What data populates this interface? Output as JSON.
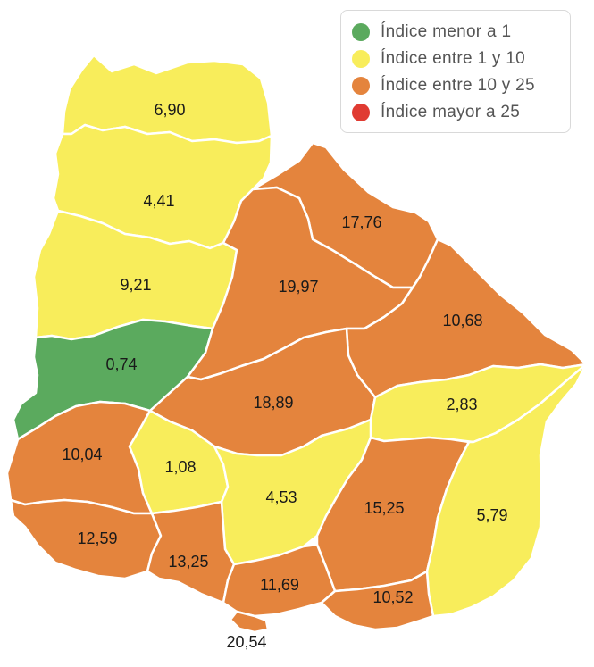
{
  "colors": {
    "green": "#5BAA5E",
    "yellow": "#F8ED5B",
    "orange": "#E4843D",
    "red": "#E03B32"
  },
  "legend": [
    {
      "label": "Índice menor a 1",
      "color": "#5BAA5E"
    },
    {
      "label": "Índice entre 1 y 10",
      "color": "#F8ED5B"
    },
    {
      "label": "Índice entre 10 y 25",
      "color": "#E4843D"
    },
    {
      "label": "Índice mayor a 25",
      "color": "#E03B32"
    }
  ],
  "regions": [
    {
      "id": "artigas",
      "value": "6,90",
      "category": "yellow"
    },
    {
      "id": "salto",
      "value": "4,41",
      "category": "yellow"
    },
    {
      "id": "paysandu",
      "value": "9,21",
      "category": "yellow"
    },
    {
      "id": "rio-negro",
      "value": "0,74",
      "category": "green"
    },
    {
      "id": "rivera",
      "value": "17,76",
      "category": "orange"
    },
    {
      "id": "tacuarembo",
      "value": "19,97",
      "category": "orange"
    },
    {
      "id": "cerro-largo",
      "value": "10,68",
      "category": "orange"
    },
    {
      "id": "durazno",
      "value": "18,89",
      "category": "orange"
    },
    {
      "id": "treinta-y-tres",
      "value": "2,83",
      "category": "yellow"
    },
    {
      "id": "soriano",
      "value": "10,04",
      "category": "orange"
    },
    {
      "id": "flores",
      "value": "1,08",
      "category": "yellow"
    },
    {
      "id": "florida",
      "value": "4,53",
      "category": "yellow"
    },
    {
      "id": "lavalleja",
      "value": "15,25",
      "category": "orange"
    },
    {
      "id": "rocha",
      "value": "5,79",
      "category": "yellow"
    },
    {
      "id": "colonia",
      "value": "12,59",
      "category": "orange"
    },
    {
      "id": "san-jose",
      "value": "13,25",
      "category": "orange"
    },
    {
      "id": "canelones",
      "value": "11,69",
      "category": "orange"
    },
    {
      "id": "maldonado",
      "value": "10,52",
      "category": "orange"
    },
    {
      "id": "montevideo",
      "value": "20,54",
      "category": "orange"
    }
  ]
}
